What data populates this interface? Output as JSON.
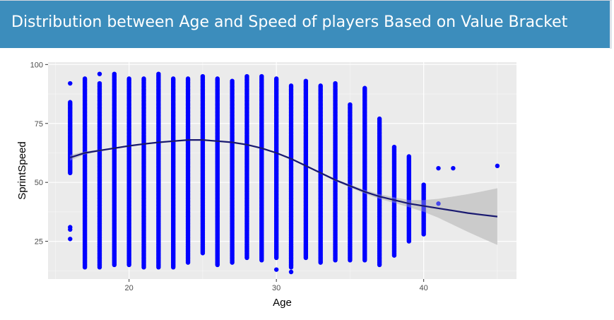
{
  "header": {
    "title": "Distribution between Age and Speed of players Based on Value Bracket",
    "background": "#3c8dbc",
    "text_color": "#ffffff"
  },
  "chart_data": {
    "type": "scatter",
    "xlabel": "Age",
    "ylabel": "SprintSpeed",
    "xlim": [
      14.5,
      46.3
    ],
    "ylim": [
      9,
      101
    ],
    "x_ticks": [
      20,
      30,
      40
    ],
    "y_ticks": [
      25,
      50,
      75,
      100
    ],
    "grid": true,
    "point_color": "#0000ff",
    "smooth_color": "#191970",
    "band_color": "#c8c8c8",
    "panel_background": "#ebebeb",
    "points": [
      {
        "age": 16,
        "min": 54,
        "max": 84,
        "outliers": [
          26,
          30,
          31,
          92
        ]
      },
      {
        "age": 17,
        "min": 14,
        "max": 94,
        "outliers": []
      },
      {
        "age": 18,
        "min": 14,
        "max": 92,
        "outliers": [
          96
        ]
      },
      {
        "age": 19,
        "min": 15,
        "max": 96,
        "outliers": []
      },
      {
        "age": 20,
        "min": 15,
        "max": 94,
        "outliers": []
      },
      {
        "age": 21,
        "min": 14,
        "max": 94,
        "outliers": []
      },
      {
        "age": 22,
        "min": 14,
        "max": 96,
        "outliers": []
      },
      {
        "age": 23,
        "min": 14,
        "max": 94,
        "outliers": []
      },
      {
        "age": 24,
        "min": 16,
        "max": 94,
        "outliers": []
      },
      {
        "age": 25,
        "min": 20,
        "max": 95,
        "outliers": []
      },
      {
        "age": 26,
        "min": 15,
        "max": 94,
        "outliers": []
      },
      {
        "age": 27,
        "min": 16,
        "max": 93,
        "outliers": []
      },
      {
        "age": 28,
        "min": 18,
        "max": 95,
        "outliers": []
      },
      {
        "age": 29,
        "min": 17,
        "max": 95,
        "outliers": []
      },
      {
        "age": 30,
        "min": 18,
        "max": 94,
        "outliers": [
          13
        ]
      },
      {
        "age": 31,
        "min": 14,
        "max": 91,
        "outliers": [
          12
        ]
      },
      {
        "age": 32,
        "min": 18,
        "max": 93,
        "outliers": []
      },
      {
        "age": 33,
        "min": 16,
        "max": 91,
        "outliers": []
      },
      {
        "age": 34,
        "min": 17,
        "max": 92,
        "outliers": []
      },
      {
        "age": 35,
        "min": 17,
        "max": 83,
        "outliers": []
      },
      {
        "age": 36,
        "min": 17,
        "max": 90,
        "outliers": []
      },
      {
        "age": 37,
        "min": 15,
        "max": 77,
        "outliers": []
      },
      {
        "age": 38,
        "min": 19,
        "max": 65,
        "outliers": []
      },
      {
        "age": 39,
        "min": 25,
        "max": 61,
        "outliers": []
      },
      {
        "age": 40,
        "min": 28,
        "max": 49,
        "outliers": []
      },
      {
        "age": 41,
        "min": 41,
        "max": 41,
        "outliers": [
          56
        ]
      },
      {
        "age": 42,
        "min": 56,
        "max": 56,
        "outliers": []
      },
      {
        "age": 45,
        "min": 57,
        "max": 57,
        "outliers": []
      }
    ],
    "smooth": {
      "x": [
        16,
        17,
        18,
        19,
        20,
        21,
        22,
        23,
        24,
        25,
        26,
        27,
        28,
        29,
        30,
        31,
        32,
        33,
        34,
        35,
        36,
        37,
        38,
        39,
        40,
        41,
        42,
        43,
        44,
        45
      ],
      "y": [
        60.5,
        62.5,
        63.5,
        64.5,
        65.5,
        66.3,
        67,
        67.5,
        68,
        68,
        67.5,
        67,
        66,
        64.5,
        62.5,
        60,
        57,
        54,
        51,
        48.5,
        46,
        44,
        42.5,
        41,
        40,
        39,
        38,
        37,
        36.2,
        35.5
      ],
      "band_halfwidth": [
        1.2,
        0.6,
        0.4,
        0.3,
        0.3,
        0.3,
        0.3,
        0.3,
        0.3,
        0.3,
        0.3,
        0.3,
        0.3,
        0.3,
        0.3,
        0.3,
        0.3,
        0.4,
        0.5,
        0.6,
        0.8,
        1,
        1.2,
        1.5,
        2.5,
        4,
        6,
        8,
        10,
        12
      ]
    }
  }
}
